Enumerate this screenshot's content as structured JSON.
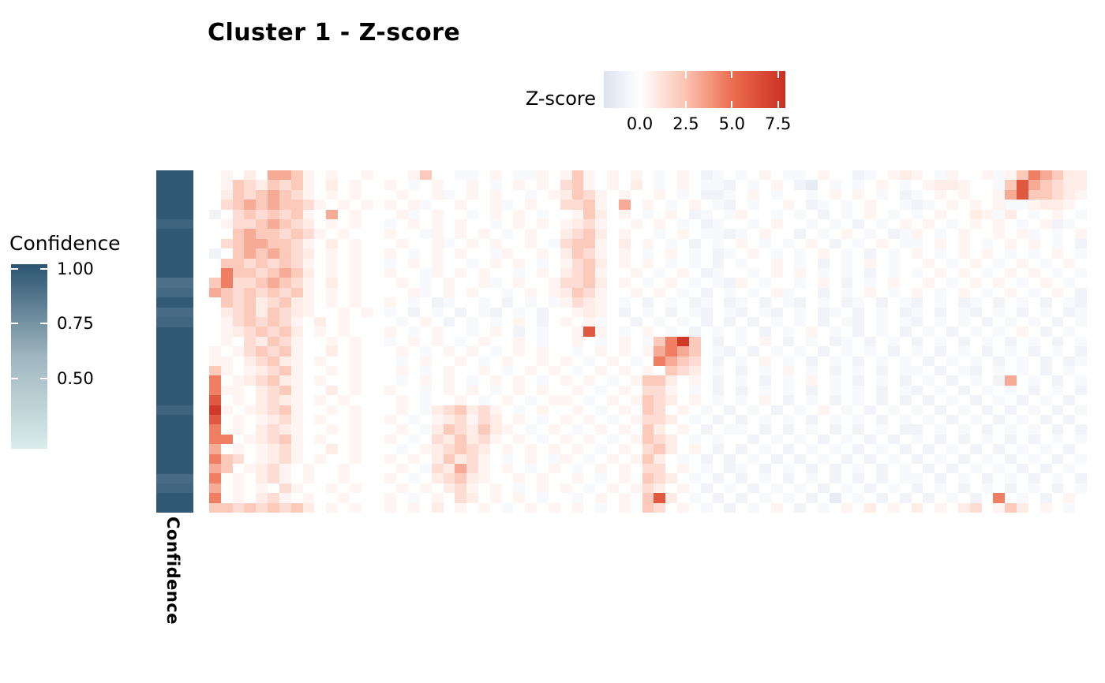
{
  "chart_data": {
    "type": "heatmap",
    "title": "Cluster 1 - Z-score",
    "n_rows": 35,
    "n_cols": 75,
    "grid": "off",
    "colorbar": {
      "label": "Z-score",
      "orientation": "horizontal",
      "tick_labels": [
        "0.0",
        "2.5",
        "5.0",
        "7.5"
      ],
      "tick_values": [
        0,
        2.5,
        5,
        7.5
      ],
      "scale": {
        "min": -1.95,
        "max": 7.9,
        "stops": [
          [
            -1.95,
            "#dce2f0"
          ],
          [
            0,
            "#ffffff"
          ],
          [
            2.5,
            "#fbc3b1"
          ],
          [
            5,
            "#ec6d50"
          ],
          [
            7.9,
            "#cb3021"
          ]
        ]
      }
    },
    "row_annotation": {
      "label": "Confidence",
      "legend_title": "Confidence",
      "legend_orientation": "vertical",
      "tick_labels": [
        "1.00",
        "0.75",
        "0.50"
      ],
      "tick_values": [
        1.0,
        0.75,
        0.5
      ],
      "scale": {
        "min": 0.18,
        "max": 1.02,
        "stops": [
          [
            0.18,
            "#daeceb"
          ],
          [
            0.6,
            "#9fb6bf"
          ],
          [
            1.02,
            "#2b5471"
          ]
        ]
      },
      "values": [
        1,
        1,
        1,
        1,
        1,
        0.95,
        1,
        1,
        1,
        1,
        1,
        0.9,
        0.93,
        1,
        0.92,
        0.94,
        1,
        1,
        1,
        1,
        1,
        1,
        1,
        1,
        0.95,
        1,
        1,
        1,
        1,
        1,
        1,
        0.92,
        0.94,
        1,
        1
      ]
    },
    "palette_key": {
      "a": -1.3,
      "b": -0.8,
      "c": -0.4,
      "w": 0,
      "d": 0.4,
      "e": 0.8,
      "f": 1.4,
      "g": 2.2,
      "h": 3.2,
      "i": 4.5,
      "j": 6,
      "k": 7.5
    },
    "rows": [
      "wdwewhhgdwdwwdwwwdgwwccwdwccdwdgdwdwdwcwdwbcwcwdwccwdwwbcwdedwcdwwdcdgihgee",
      "wdgfegfgdwewdwwdwcwdwwdwcwdwdwfgdwdwewcwdwccbwcwdwbawcwcwdwcwdeedwwcgjhgfee",
      "wegfghgfdwdwdwwwdwwdcwdwdwwcwdegfdwdwwdwcwbbcwdwcwwcwdwdwcwbcwdwdwwdhjggfed",
      "wfghghggfdwdwdwdwdcwwdwwdcwdwwffgdwhwdwcwdwcbwcwwdwbcwcwdwwcbcwdwdwdccdeedw",
      "bwfgfgfgdwhwdwwwdcwdwwcwdwdwcwwdgewdwcwdwbcwcdwwcwcwbwcwdwcwcwdwwedcewcwdwc",
      "wdffghgfewdwdwwcwdwdwdwwcwdwdwdefdwwdwdwcwbcwwcwdwwcwcwbwcwdwdwcwdwdwcwdbcw",
      "wwghggfgfdwdwwwdwwcdwdwdwcwdwwefgewdwwcwdwccbcwdwwbwcwdwcwbcdwcwdwwdwdcwcwd",
      "wfghhggfdwewdwwwdwwdcwdwdwwdwcfggdwewdwcwbwcwdwcwcwdwbwcwdwccwdwdwcwdwdwcwb",
      "bwghghgfewdwdwwdwcwdwdwwcdwwdwegfdwdwcwdwcwbcwdwcwcwdwcwbwcwdwcwdwdwcwcwdwc",
      "wggfgfgfdwdwdwwcwdwdwwcwdwdwcwdfgewdwdwcwcwbwcwwdwcwbwcwdwcwwdwcwdwcwdwcwdw",
      "wiggfghgewdwdwwdwwcdwdwdwwcwdwefgdwwdwcwdwbcwwcwdwdwcwcwbwcwcwdwdwcwdwdwcwc",
      "giffghgfdwewdwwwdwcwdwwdcwdwwdffgewdwcwdwcwcbdwcwwcwdwbwcwdwwdwcwdwdwcwdwcw",
      "hgfgfgfgdwdwdwwwwdcwdwdwwcwdwdegfdwwdwdwcwbwcwcwdcwwbwcwdwcwdwcwdwcwdwcwdwb",
      "wgfgefgedwdwdwwdwcwbcwwcwbwcwcdfedwcwbwcwbcwbcwbwcbwcwbcwbwcbwcwbcwbwcwbwcb",
      "wefgegfedwwdwdwcwbwcwbwcbwcwbwwdedwbwcwbwcbwcbwcbwcwbcwbwcwbcwbwcbwcwbwcwbc",
      "wdfgfgfdwewdwwwwcwdwbwcwcwdwbwdwdcwwbwcwcwbwbwbwcwcwbwcbwcwcbwcwcwbwcwcwbwc",
      "wdefgfgewdwdwwwdwcwdwwcwdwbwcwwdjdwcwdwcwbwcwcwbwcwdwcwbwcwbwcwbwcwcwdwbwcw",
      "wdwfegfdwwdwdwwcwdwdwcwdwwdwcwwdwcwdwcgikgwbwcwdwbwcwbcwbwcwbwcwbwcwbwcwbwc",
      "dwdfgfgdwwewdwwwdwcwdwdwcwdwdwwcwdwdwdhihgwcbwbwcwcwbwcwcwbwcwbwcwbwcwbwcwb",
      "ddwefgedwdwwdwwwcwdwwdwcwdwwdwdwcwdwcwihgfwbwcwdwcwbwcwbwcwcwbwcwcwbwcwbwbc",
      "gdwdefgdwwdwdwwwdwcwdwwdwcwdwdwcwdwdwdwgfewcwbwcwdwcwbwcwbwccwbwcbwcwcwbwcw",
      "iwdefgedwdwwdwwwcwdwdwcwdwdwcwdwdwcwdggewdwbwcwbwcwdwcwbwcwbwcwbwcwbhwcwbwc",
      "iddwefgdwwewdwwdwwcwdwdwcwdwdwwdwcwdwffdwcwbwbwcwcwbwcwcwbwcbwcwbwcwcwbwcwb",
      "jwdwefedwdwdwwwwdwcwwdwcwdwcwddwcwdwdgfewdwcwcwdwbwcwbwcwbwbwbwcwbwcwbwcwbw",
      "kdwdefgdwwdwdwwwdwcefgefdwcwdwwdwcwdwgfwdwcwbwcwbwcwdwcwbwcwcwbwcwbwbwcwbwc",
      "jwdwdefdwdwwdwwdwcwdefdfewdwcwdwdwcwdffewcwbwbwcwcwbwcwcwbwcwcwbwcwbwcwbwbw",
      "iwdwefedwwdwdwwwdwcegfegedwcwdwcwdwdwgewdwbwccwbwbwcwbwbwcwbbwcwcwbwcwcwbwb",
      "iiwdefgdwdwwdwwdwcwfegefdwdwcwdwdwcwdgfewcwcwwbwcwcwbwcwbwbwcwbwbwcwbwbwcwc",
      "hwdwdefdwwewdwwwcwdefgfewdwdwdwdwcwdwfgewdwbwbwcwbwcwcwbwcwbwbwcwbwbwcwcwbw",
      "igfwdefdwdwwdwwdwdwegefdwcwdwcdwcwdwdgewcwbwbwcwbwbwcwbwbwcwbwcwbwcwbwcwbwc",
      "hgwdefdwdwwdwwwwdwcfehfdwdwcwdwcwdwdwffwdwcwbcwbwcwbwbwcwbwcwbwbwcwcwbwbwcw",
      "iwdwefdwdwwdwwwdwcwefgedwwdwdwwdwcwdwgfewcwbwbwcwbwcwbwbwbwccwbwcwbwcwbwcwb",
      "hwdwdwfdwwdwdwwwdwdwefdwdwcwdwdwcwdwdfewdwbwcwbwcwcwbwcwbwcwbwcwbwcwbwcwbwc",
      "iwdwefdwdwwdwwwdwcwdwfewdwdwcwwcwdwdwgjewcwbwbwcwcwbwawcwbwbwbwcwbwiwcwbwdw",
      "ggfgfgfgewdwdwwdwdwewdwdwcwdwdwdwcwdwgfwdwcwbwcwdwbwcwdwewdwewdwefwdgewdwcw"
    ]
  }
}
